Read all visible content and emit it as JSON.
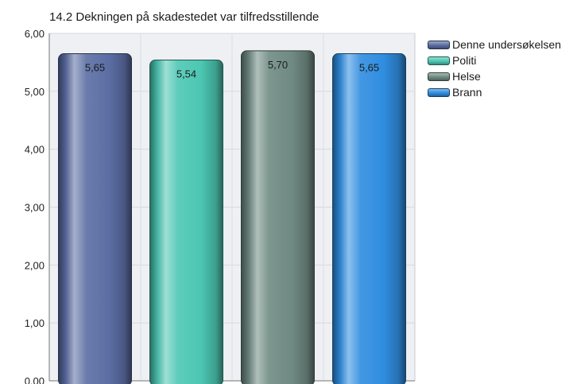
{
  "chart_data": {
    "type": "bar",
    "title": "14.2 Dekningen på skadestedet var tilfredsstillende",
    "categories": [
      "Denne undersøkelsen",
      "Politi",
      "Helse",
      "Brann"
    ],
    "values": [
      5.65,
      5.54,
      5.7,
      5.65
    ],
    "value_labels": [
      "5,65",
      "5,54",
      "5,70",
      "5,65"
    ],
    "ylim": [
      0,
      6
    ],
    "yticks": [
      0,
      1,
      2,
      3,
      4,
      5,
      6
    ],
    "ytick_labels": [
      "0,00",
      "1,00",
      "2,00",
      "3,00",
      "4,00",
      "5,00",
      "6,00"
    ],
    "grid": true,
    "legend_position": "right",
    "series_colors": [
      "#5b6da3",
      "#4cc7b3",
      "#6f8a82",
      "#2f8de0"
    ]
  }
}
